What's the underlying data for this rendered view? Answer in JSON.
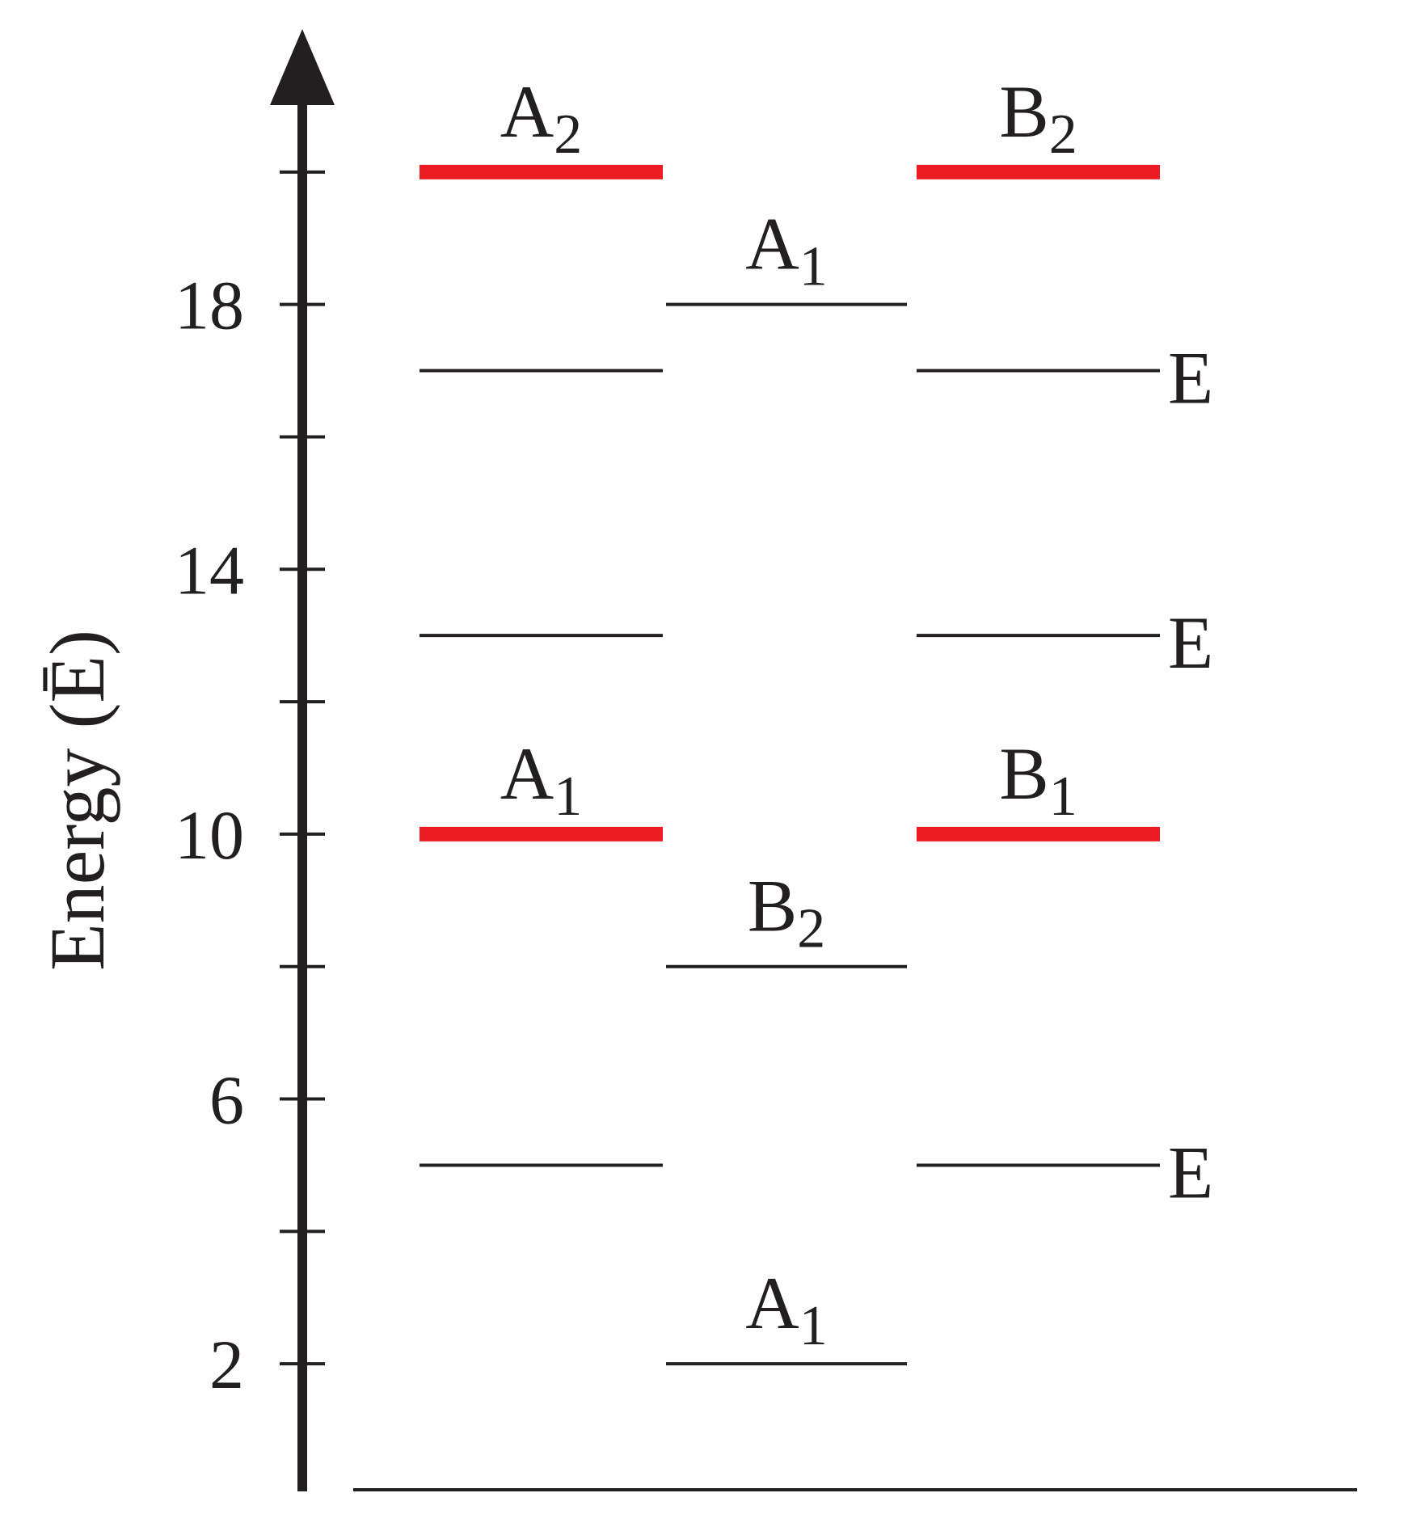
{
  "chart_data": {
    "type": "energy-levels",
    "ylabel": "Energy (Ē)",
    "ylim": [
      0,
      22
    ],
    "yticks": [
      2,
      6,
      10,
      14,
      18
    ],
    "minor_yticks": [
      4,
      8,
      12,
      16,
      20
    ],
    "level_color": "#231f20",
    "highlight_color": "#ed1c24",
    "columns": [
      {
        "levels": [
          {
            "value": 20,
            "label": "A",
            "sub": "2",
            "highlight": true,
            "label_position": "above"
          },
          {
            "value": 17
          },
          {
            "value": 13
          },
          {
            "value": 10,
            "label": "A",
            "sub": "1",
            "highlight": true,
            "label_position": "above"
          },
          {
            "value": 5
          }
        ]
      },
      {
        "levels": [
          {
            "value": 18,
            "label": "A",
            "sub": "1",
            "label_position": "above"
          },
          {
            "value": 8,
            "label": "B",
            "sub": "2",
            "label_position": "above"
          },
          {
            "value": 2,
            "label": "A",
            "sub": "1",
            "label_position": "above"
          }
        ]
      },
      {
        "levels": [
          {
            "value": 20,
            "label": "B",
            "sub": "2",
            "highlight": true,
            "label_position": "above"
          },
          {
            "value": 17,
            "label": "E",
            "label_position": "right"
          },
          {
            "value": 13,
            "label": "E",
            "label_position": "right"
          },
          {
            "value": 10,
            "label": "B",
            "sub": "1",
            "highlight": true,
            "label_position": "above"
          },
          {
            "value": 5,
            "label": "E",
            "label_position": "right"
          }
        ]
      }
    ]
  }
}
